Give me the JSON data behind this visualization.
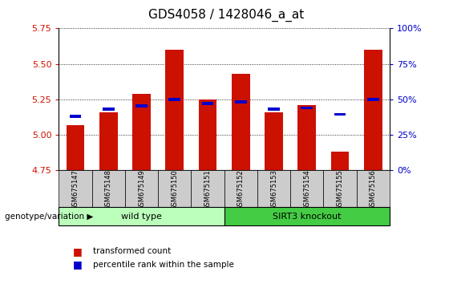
{
  "title": "GDS4058 / 1428046_a_at",
  "samples": [
    "GSM675147",
    "GSM675148",
    "GSM675149",
    "GSM675150",
    "GSM675151",
    "GSM675152",
    "GSM675153",
    "GSM675154",
    "GSM675155",
    "GSM675156"
  ],
  "red_values": [
    5.07,
    5.16,
    5.29,
    5.6,
    5.25,
    5.43,
    5.16,
    5.21,
    4.88,
    5.6
  ],
  "blue_values": [
    5.13,
    5.18,
    5.205,
    5.25,
    5.22,
    5.235,
    5.18,
    5.19,
    5.145,
    5.25
  ],
  "ylim": [
    4.75,
    5.75
  ],
  "yticks": [
    4.75,
    5.0,
    5.25,
    5.5,
    5.75
  ],
  "y2lim": [
    0,
    100
  ],
  "y2ticks": [
    0,
    25,
    50,
    75,
    100
  ],
  "bar_color": "#CC1100",
  "dot_color": "#0000CC",
  "bar_width": 0.55,
  "groups": [
    {
      "label": "wild type",
      "start": 0,
      "end": 5,
      "color": "#BBFFBB"
    },
    {
      "label": "SIRT3 knockout",
      "start": 5,
      "end": 10,
      "color": "#44CC44"
    }
  ],
  "group_label_prefix": "genotype/variation",
  "legend_red": "transformed count",
  "legend_blue": "percentile rank within the sample",
  "title_fontsize": 11,
  "tick_fontsize": 8,
  "ax_label_color_left": "#CC1100",
  "ax_label_color_right": "#0000CC"
}
